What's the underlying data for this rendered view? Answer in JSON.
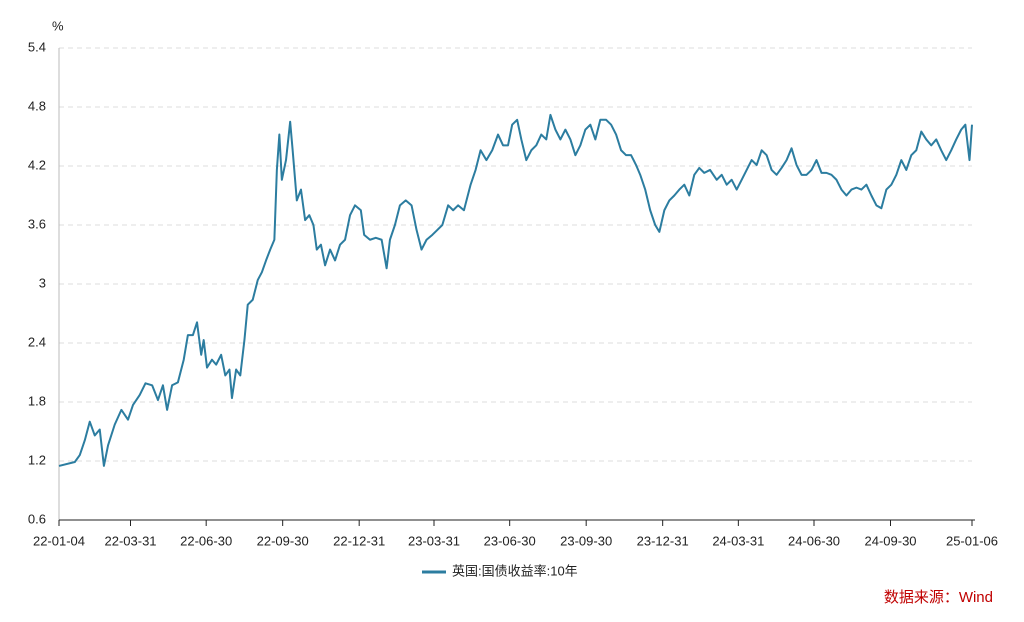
{
  "chart_data": {
    "type": "line",
    "y_label": "%",
    "source": "数据来源：Wind",
    "x": [
      "22-01-04",
      "22-01-23",
      "22-01-29",
      "22-02-04",
      "22-02-10",
      "22-02-16",
      "22-02-22",
      "22-02-27",
      "22-03-04",
      "22-03-12",
      "22-03-20",
      "22-03-28",
      "22-04-03",
      "22-04-11",
      "22-04-18",
      "22-04-26",
      "22-05-03",
      "22-05-09",
      "22-05-14",
      "22-05-20",
      "22-05-27",
      "22-06-03",
      "22-06-08",
      "22-06-14",
      "22-06-19",
      "22-06-24",
      "22-06-27",
      "22-07-01",
      "22-07-07",
      "22-07-12",
      "22-07-18",
      "22-07-23",
      "22-07-28",
      "22-07-31",
      "22-08-05",
      "22-08-10",
      "22-08-15",
      "22-08-19",
      "22-08-25",
      "22-08-31",
      "22-09-05",
      "22-09-10",
      "22-09-15",
      "22-09-20",
      "22-09-23",
      "22-09-26",
      "22-09-29",
      "22-10-04",
      "22-10-09",
      "22-10-12",
      "22-10-17",
      "22-10-22",
      "22-10-27",
      "22-11-01",
      "22-11-06",
      "22-11-10",
      "22-11-15",
      "22-11-20",
      "22-11-26",
      "22-12-02",
      "22-12-08",
      "22-12-14",
      "22-12-20",
      "22-12-26",
      "23-01-02",
      "23-01-06",
      "23-01-13",
      "23-01-20",
      "23-01-27",
      "23-02-02",
      "23-02-06",
      "23-02-12",
      "23-02-18",
      "23-02-25",
      "23-03-04",
      "23-03-10",
      "23-03-16",
      "23-03-22",
      "23-03-29",
      "23-04-04",
      "23-04-10",
      "23-04-17",
      "23-04-23",
      "23-04-29",
      "23-05-06",
      "23-05-14",
      "23-05-20",
      "23-05-26",
      "23-06-02",
      "23-06-09",
      "23-06-16",
      "23-06-22",
      "23-06-28",
      "23-07-03",
      "23-07-09",
      "23-07-14",
      "23-07-20",
      "23-07-26",
      "23-08-01",
      "23-08-07",
      "23-08-13",
      "23-08-18",
      "23-08-24",
      "23-08-30",
      "23-09-05",
      "23-09-11",
      "23-09-17",
      "23-09-23",
      "23-09-29",
      "23-10-05",
      "23-10-11",
      "23-10-17",
      "23-10-24",
      "23-10-30",
      "23-11-05",
      "23-11-11",
      "23-11-17",
      "23-11-23",
      "23-11-29",
      "23-12-04",
      "23-12-10",
      "23-12-16",
      "23-12-22",
      "23-12-27",
      "24-01-02",
      "24-01-08",
      "24-01-14",
      "24-01-20",
      "24-01-26",
      "24-02-01",
      "24-02-07",
      "24-02-13",
      "24-02-19",
      "24-02-26",
      "24-03-05",
      "24-03-11",
      "24-03-17",
      "24-03-23",
      "24-03-29",
      "24-04-04",
      "24-04-10",
      "24-04-16",
      "24-04-22",
      "24-04-28",
      "24-05-04",
      "24-05-10",
      "24-05-16",
      "24-05-22",
      "24-05-28",
      "24-06-03",
      "24-06-09",
      "24-06-15",
      "24-06-21",
      "24-06-27",
      "24-07-03",
      "24-07-09",
      "24-07-15",
      "24-07-21",
      "24-07-27",
      "24-08-02",
      "24-08-08",
      "24-08-14",
      "24-08-20",
      "24-08-26",
      "24-09-01",
      "24-09-07",
      "24-09-13",
      "24-09-19",
      "24-09-25",
      "24-10-01",
      "24-10-07",
      "24-10-13",
      "24-10-19",
      "24-10-25",
      "24-10-31",
      "24-11-06",
      "24-11-12",
      "24-11-18",
      "24-11-24",
      "24-11-30",
      "24-12-06",
      "24-12-12",
      "24-12-18",
      "24-12-24",
      "24-12-29",
      "25-01-03",
      "25-01-06"
    ],
    "series": [
      {
        "name": "英国:国债收益率:10年",
        "color": "#2c7da0",
        "values": [
          1.15,
          1.19,
          1.26,
          1.41,
          1.6,
          1.46,
          1.52,
          1.15,
          1.36,
          1.57,
          1.72,
          1.62,
          1.77,
          1.87,
          1.99,
          1.97,
          1.82,
          1.97,
          1.72,
          1.97,
          2.0,
          2.23,
          2.48,
          2.48,
          2.61,
          2.28,
          2.43,
          2.15,
          2.23,
          2.18,
          2.28,
          2.07,
          2.13,
          1.84,
          2.13,
          2.07,
          2.43,
          2.79,
          2.84,
          3.04,
          3.12,
          3.24,
          3.35,
          3.45,
          4.16,
          4.52,
          4.06,
          4.26,
          4.65,
          4.36,
          3.85,
          3.96,
          3.65,
          3.7,
          3.6,
          3.35,
          3.4,
          3.19,
          3.35,
          3.24,
          3.4,
          3.45,
          3.7,
          3.8,
          3.75,
          3.5,
          3.45,
          3.47,
          3.45,
          3.16,
          3.45,
          3.6,
          3.8,
          3.85,
          3.8,
          3.55,
          3.35,
          3.45,
          3.5,
          3.55,
          3.6,
          3.8,
          3.75,
          3.8,
          3.75,
          4.01,
          4.16,
          4.36,
          4.26,
          4.36,
          4.52,
          4.41,
          4.41,
          4.62,
          4.67,
          4.47,
          4.26,
          4.36,
          4.41,
          4.52,
          4.47,
          4.72,
          4.57,
          4.47,
          4.57,
          4.47,
          4.31,
          4.41,
          4.57,
          4.62,
          4.47,
          4.67,
          4.67,
          4.62,
          4.52,
          4.36,
          4.31,
          4.31,
          4.21,
          4.11,
          3.96,
          3.75,
          3.6,
          3.53,
          3.75,
          3.85,
          3.9,
          3.96,
          4.01,
          3.9,
          4.11,
          4.18,
          4.13,
          4.16,
          4.06,
          4.11,
          4.01,
          4.06,
          3.96,
          4.06,
          4.16,
          4.26,
          4.21,
          4.36,
          4.31,
          4.16,
          4.11,
          4.18,
          4.26,
          4.38,
          4.21,
          4.11,
          4.11,
          4.16,
          4.26,
          4.13,
          4.13,
          4.11,
          4.06,
          3.96,
          3.9,
          3.96,
          3.98,
          3.96,
          4.01,
          3.9,
          3.8,
          3.77,
          3.96,
          4.01,
          4.11,
          4.26,
          4.16,
          4.31,
          4.36,
          4.55,
          4.47,
          4.41,
          4.47,
          4.36,
          4.26,
          4.36,
          4.47,
          4.57,
          4.62,
          4.26,
          4.62
        ]
      }
    ],
    "xlim": [
      "22-01-04",
      "25-01-06"
    ],
    "xticks": [
      "22-01-04",
      "22-03-31",
      "22-06-30",
      "22-09-30",
      "22-12-31",
      "23-03-31",
      "23-06-30",
      "23-09-30",
      "23-12-31",
      "24-03-31",
      "24-06-30",
      "24-09-30",
      "25-01-06"
    ],
    "ylim": [
      0.6,
      5.4
    ],
    "yticks": [
      0.6,
      1.2,
      1.8,
      2.4,
      3,
      3.6,
      4.2,
      4.8,
      5.4
    ],
    "grid": true
  }
}
